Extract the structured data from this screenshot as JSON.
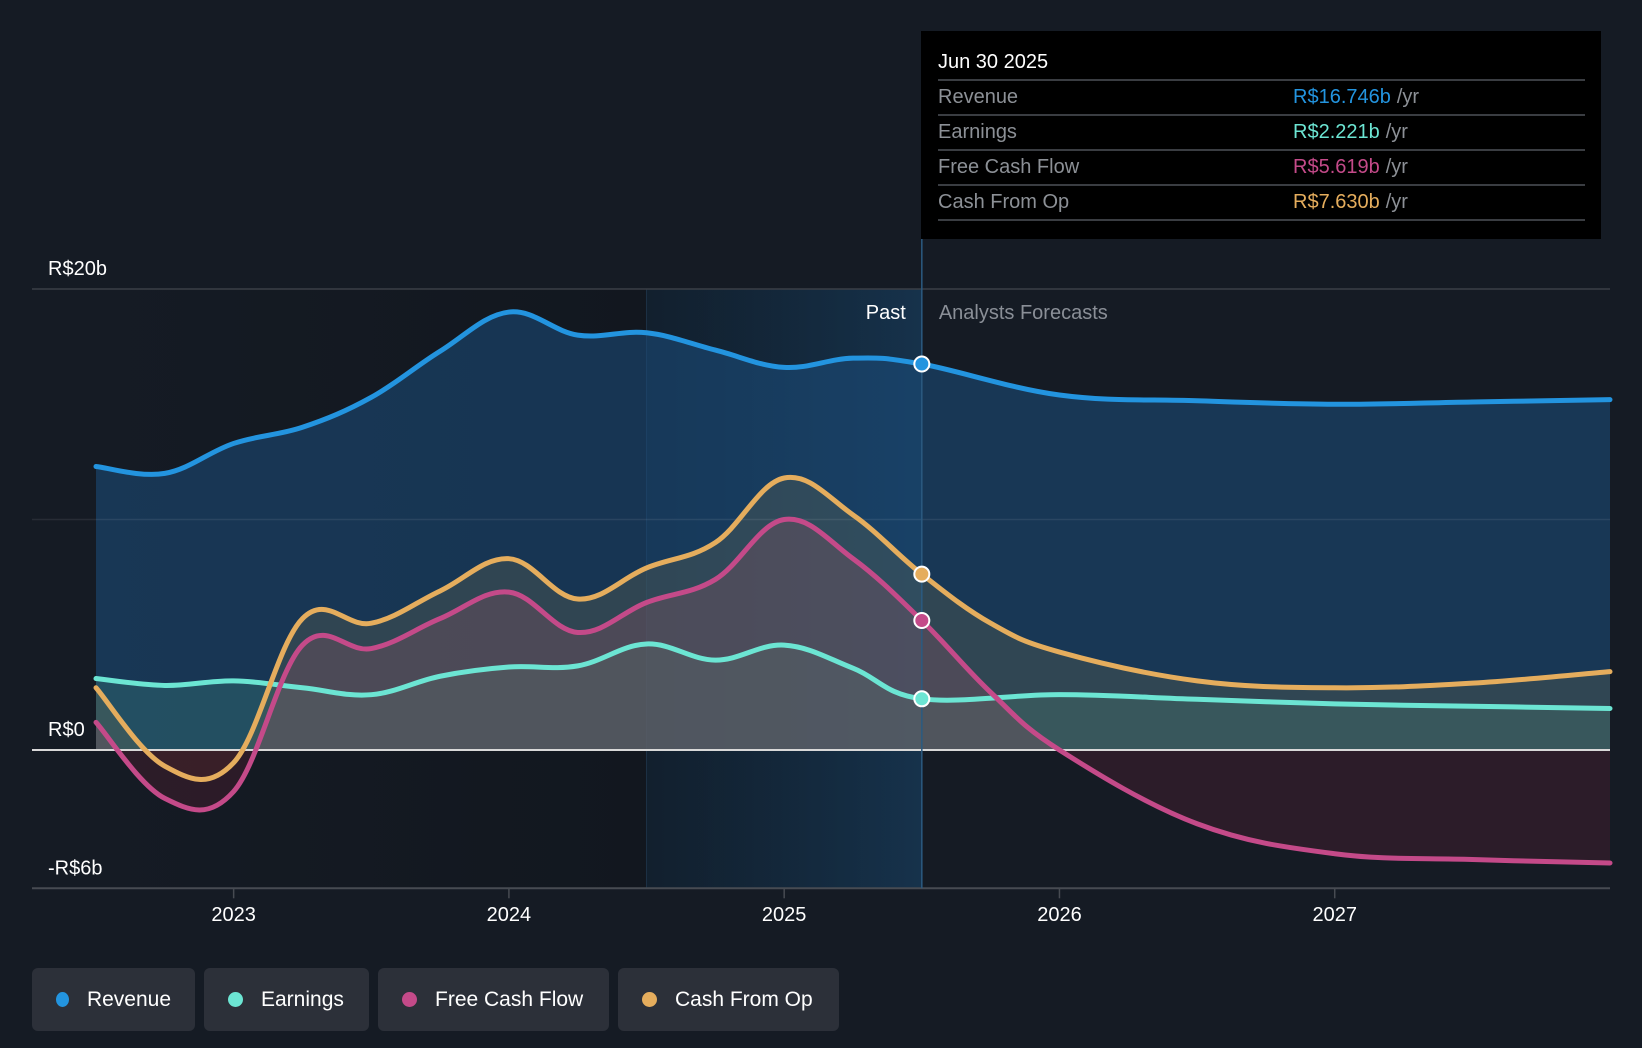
{
  "tooltip": {
    "date": "Jun 30 2025",
    "rows": [
      {
        "label": "Revenue",
        "value": "R$16.746b",
        "unit": "/yr",
        "color": "#2394df"
      },
      {
        "label": "Earnings",
        "value": "R$2.221b",
        "unit": "/yr",
        "color": "#6ce5d3"
      },
      {
        "label": "Free Cash Flow",
        "value": "R$5.619b",
        "unit": "/yr",
        "color": "#c44a89"
      },
      {
        "label": "Cash From Op",
        "value": "R$7.630b",
        "unit": "/yr",
        "color": "#e5ad5d"
      }
    ]
  },
  "legend": [
    {
      "label": "Revenue",
      "color": "#2394df"
    },
    {
      "label": "Earnings",
      "color": "#6ce5d3"
    },
    {
      "label": "Free Cash Flow",
      "color": "#c44a89"
    },
    {
      "label": "Cash From Op",
      "color": "#e5ad5d"
    }
  ],
  "chart_data": {
    "type": "area",
    "title": "",
    "xlabel": "",
    "ylabel": "",
    "currency": "R$",
    "unit": "b",
    "ylim": [
      -6,
      20
    ],
    "xlim": [
      2022.5,
      2028.0
    ],
    "y_tick_labels": [
      {
        "value": 20,
        "label": "R$20b"
      },
      {
        "value": 0,
        "label": "R$0"
      },
      {
        "value": -6,
        "label": "-R$6b"
      }
    ],
    "x_ticks": [
      2023,
      2024,
      2025,
      2026,
      2027
    ],
    "x_tick_labels": [
      "2023",
      "2024",
      "2025",
      "2026",
      "2027"
    ],
    "grid": true,
    "legend_position": "bottom-left",
    "past_label": "Past",
    "forecast_label": "Analysts Forecasts",
    "divider_x": 2025.5,
    "highlight_range": [
      2024.5,
      2025.5
    ],
    "series": [
      {
        "name": "Revenue",
        "color": "#2394df",
        "points": [
          [
            2022.5,
            12.3
          ],
          [
            2022.75,
            12.0
          ],
          [
            2023.0,
            13.3
          ],
          [
            2023.25,
            14.0
          ],
          [
            2023.5,
            15.3
          ],
          [
            2023.75,
            17.3
          ],
          [
            2024.0,
            19.0
          ],
          [
            2024.25,
            18.0
          ],
          [
            2024.5,
            18.1
          ],
          [
            2024.75,
            17.35
          ],
          [
            2025.0,
            16.6
          ],
          [
            2025.25,
            17.0
          ],
          [
            2025.5,
            16.746
          ],
          [
            2026.0,
            15.4
          ],
          [
            2026.5,
            15.15
          ],
          [
            2027.0,
            15.0
          ],
          [
            2027.5,
            15.1
          ],
          [
            2028.0,
            15.2
          ]
        ]
      },
      {
        "name": "Earnings",
        "color": "#6ce5d3",
        "points": [
          [
            2022.5,
            3.1
          ],
          [
            2022.75,
            2.8
          ],
          [
            2023.0,
            3.0
          ],
          [
            2023.25,
            2.7
          ],
          [
            2023.5,
            2.4
          ],
          [
            2023.75,
            3.2
          ],
          [
            2024.0,
            3.6
          ],
          [
            2024.25,
            3.65
          ],
          [
            2024.5,
            4.6
          ],
          [
            2024.75,
            3.9
          ],
          [
            2025.0,
            4.55
          ],
          [
            2025.25,
            3.55
          ],
          [
            2025.5,
            2.221
          ],
          [
            2026.0,
            2.4
          ],
          [
            2026.5,
            2.2
          ],
          [
            2027.0,
            2.0
          ],
          [
            2027.5,
            1.9
          ],
          [
            2028.0,
            1.8
          ]
        ]
      },
      {
        "name": "Free Cash Flow",
        "color": "#c44a89",
        "points": [
          [
            2022.5,
            1.2
          ],
          [
            2022.75,
            -2.1
          ],
          [
            2023.0,
            -1.8
          ],
          [
            2023.25,
            4.55
          ],
          [
            2023.5,
            4.4
          ],
          [
            2023.75,
            5.7
          ],
          [
            2024.0,
            6.85
          ],
          [
            2024.25,
            5.1
          ],
          [
            2024.5,
            6.4
          ],
          [
            2024.75,
            7.4
          ],
          [
            2025.0,
            10.0
          ],
          [
            2025.25,
            8.3
          ],
          [
            2025.5,
            5.619
          ],
          [
            2025.75,
            2.5
          ],
          [
            2026.0,
            0.0
          ],
          [
            2026.5,
            -3.2
          ],
          [
            2027.0,
            -4.5
          ],
          [
            2027.5,
            -4.75
          ],
          [
            2028.0,
            -4.9
          ]
        ]
      },
      {
        "name": "Cash From Op",
        "color": "#e5ad5d",
        "points": [
          [
            2022.5,
            2.7
          ],
          [
            2022.75,
            -0.7
          ],
          [
            2023.0,
            -0.55
          ],
          [
            2023.25,
            5.7
          ],
          [
            2023.5,
            5.5
          ],
          [
            2023.75,
            6.9
          ],
          [
            2024.0,
            8.3
          ],
          [
            2024.25,
            6.55
          ],
          [
            2024.5,
            7.9
          ],
          [
            2024.75,
            9.0
          ],
          [
            2025.0,
            11.8
          ],
          [
            2025.25,
            10.2
          ],
          [
            2025.5,
            7.63
          ],
          [
            2025.75,
            5.5
          ],
          [
            2026.0,
            4.25
          ],
          [
            2026.5,
            3.0
          ],
          [
            2027.0,
            2.7
          ],
          [
            2027.5,
            2.9
          ],
          [
            2028.0,
            3.4
          ]
        ]
      }
    ]
  }
}
